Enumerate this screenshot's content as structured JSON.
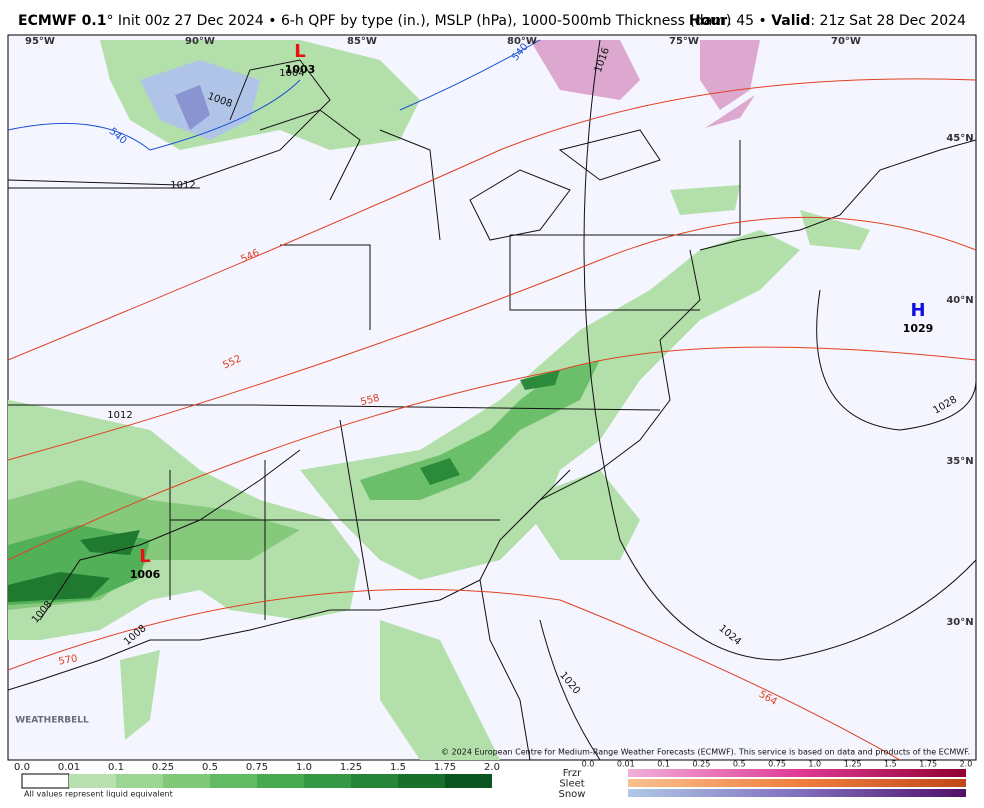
{
  "header": {
    "model": "ECMWF 0.1",
    "description": "° Init 00z 27 Dec 2024 • 6-h QPF by type (in.), MSLP (hPa), 1000-500mb Thickness (dam)",
    "hour_label": "Hour",
    "hour_value": ": 45 • ",
    "valid_label": "Valid",
    "valid_value": ": 21z Sat 28 Dec 2024"
  },
  "map": {
    "longitude_labels": [
      "95°W",
      "90°W",
      "85°W",
      "80°W",
      "75°W",
      "70°W"
    ],
    "latitude_labels": [
      "45°N",
      "40°N",
      "35°N",
      "30°N"
    ],
    "pressure_centers": [
      {
        "letter": "L",
        "value": "1003"
      },
      {
        "letter": "L",
        "value": "1006"
      },
      {
        "letter": "H",
        "value": "1029"
      }
    ],
    "isobar_labels": [
      "1004",
      "1008",
      "1012",
      "1012",
      "1016",
      "1020",
      "1024",
      "1028",
      "1008",
      "1008"
    ],
    "thickness_labels": [
      "540",
      "540",
      "546",
      "552",
      "558",
      "564",
      "570"
    ],
    "watermark": "WEATHERBELL",
    "copyright": "© 2024 European Centre for Medium-Range Weather Forecasts (ECMWF). This service is based on data and products of the ECMWF."
  },
  "legend": {
    "rain_ticks": [
      "0.0",
      "0.01",
      "0.1",
      "0.25",
      "0.5",
      "0.75",
      "1.0",
      "1.25",
      "1.5",
      "1.75",
      "2.0"
    ],
    "note": "All values represent liquid equivalent",
    "ptypes": [
      "Frzr",
      "Sleet",
      "Snow"
    ],
    "ptype_ticks": [
      "0.0",
      "0.01",
      "0.1",
      "0.25",
      "0.5",
      "0.75",
      "1.0",
      "1.25",
      "1.5",
      "1.75",
      "2.0"
    ]
  }
}
